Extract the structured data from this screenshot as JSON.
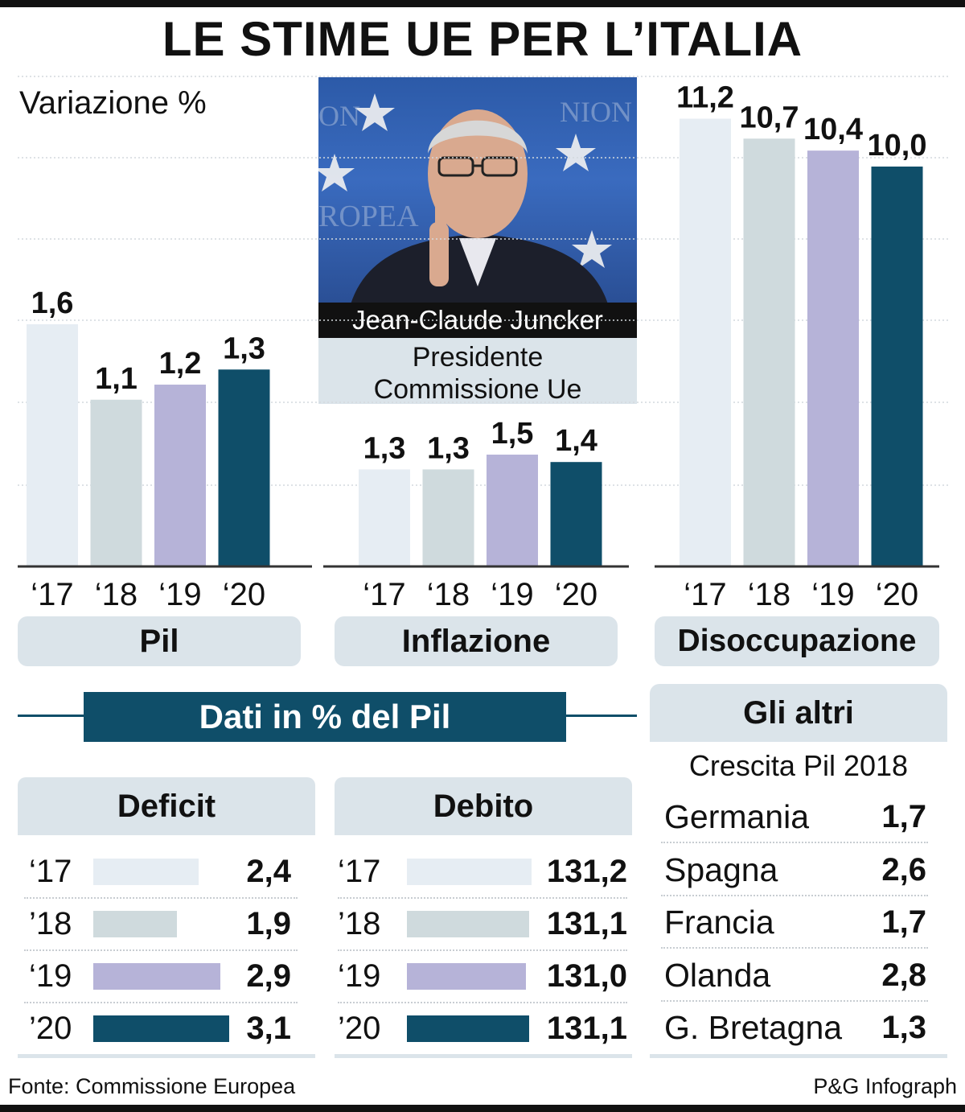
{
  "title": "LE STIME UE PER L’ITALIA",
  "subtitle": "Variazione %",
  "photo": {
    "name": "Jean-Claude Juncker",
    "role_line1": "Presidente",
    "role_line2": "Commissione Ue"
  },
  "colors": {
    "y17": "#e6edf3",
    "y18": "#cfdadd",
    "y19": "#b6b3d8",
    "y20": "#0f4e69",
    "panel": "#dbe4ea"
  },
  "chart_data": [
    {
      "type": "bar",
      "title": "Pil",
      "categories": [
        "‘17",
        "‘18",
        "‘19",
        "‘20"
      ],
      "values": [
        1.6,
        1.1,
        1.2,
        1.3
      ],
      "labels": [
        "1,6",
        "1,1",
        "1,2",
        "1,3"
      ]
    },
    {
      "type": "bar",
      "title": "Inflazione",
      "categories": [
        "‘17",
        "‘18",
        "‘19",
        "‘20"
      ],
      "values": [
        1.3,
        1.3,
        1.5,
        1.4
      ],
      "labels": [
        "1,3",
        "1,3",
        "1,5",
        "1,4"
      ]
    },
    {
      "type": "bar",
      "title": "Disoccupazione",
      "categories": [
        "‘17",
        "‘18",
        "‘19",
        "‘20"
      ],
      "values": [
        11.2,
        10.7,
        10.4,
        10.0
      ],
      "labels": [
        "11,2",
        "10,7",
        "10,4",
        "10,0"
      ]
    },
    {
      "type": "bar",
      "orientation": "horizontal",
      "title": "Deficit",
      "categories": [
        "‘17",
        "’18",
        "‘19",
        "’20"
      ],
      "values": [
        2.4,
        1.9,
        2.9,
        3.1
      ],
      "labels": [
        "2,4",
        "1,9",
        "2,9",
        "3,1"
      ]
    },
    {
      "type": "bar",
      "orientation": "horizontal",
      "title": "Debito",
      "categories": [
        "‘17",
        "’18",
        "‘19",
        "’20"
      ],
      "values": [
        131.2,
        131.1,
        131.0,
        131.1
      ],
      "labels": [
        "131,2",
        "131,1",
        "131,0",
        "131,1"
      ]
    },
    {
      "type": "table",
      "title": "Gli altri",
      "subtitle": "Crescita Pil 2018",
      "rows": [
        {
          "country": "Germania",
          "value": "1,7"
        },
        {
          "country": "Spagna",
          "value": "2,6"
        },
        {
          "country": "Francia",
          "value": "1,7"
        },
        {
          "country": "Olanda",
          "value": "2,8"
        },
        {
          "country": "G. Bretagna",
          "value": "1,3"
        }
      ]
    }
  ],
  "section_banner": "Dati in % del Pil",
  "source": "Fonte: Commissione Europea",
  "credit": "P&G Infograph"
}
